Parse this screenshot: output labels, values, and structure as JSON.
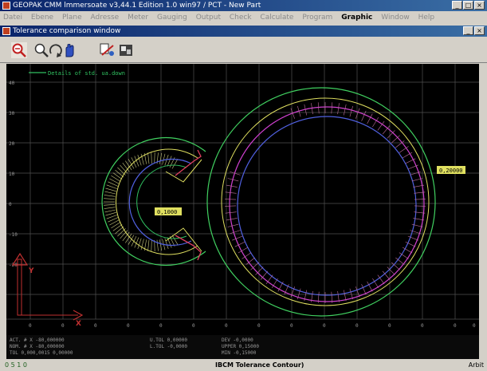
{
  "window": {
    "title": "GEOPAK CMM lmmersoate v3,44.1 Edition 1.0 win97 / PCT - New Part"
  },
  "menu": [
    "Datei",
    "Ebene",
    "Plane",
    "Adresse",
    "Meter",
    "Gauging",
    "Output",
    "Check",
    "Calculate",
    "Program",
    "Graphic",
    "Window",
    "Help"
  ],
  "menu_active": "Graphic",
  "subwindow": {
    "title": "Tolerance comparison window"
  },
  "plot": {
    "legend": "Details of std. ua.down",
    "labels": {
      "right": "0,20000",
      "center": "0,1000"
    },
    "y_ticks": [
      "40",
      "30",
      "20",
      "10",
      "0",
      "-10",
      "-20"
    ],
    "x_ticks": [
      "0",
      "0",
      "0",
      "0",
      "0",
      "0",
      "0",
      "0",
      "0",
      "0",
      "0",
      "0",
      "0",
      "0",
      "0"
    ],
    "axis": {
      "y": "Y",
      "x": "X"
    }
  },
  "status": {
    "col1": [
      "ACT. #  X  -80,000000",
      "NOM. #  X  -80,000000",
      "TOL  0,000,0015  0,00000"
    ],
    "col2": [
      "U.TOL  0,00000",
      "L.TOL  -0,0000"
    ],
    "col3": [
      "DEV  -0,0000",
      "UPPER  0,15000",
      "MIN  -0,15000"
    ]
  },
  "bottombar": {
    "left": "0 5 1 0",
    "center": "IBCM Tolerance Contour)",
    "right": "Arbit"
  }
}
